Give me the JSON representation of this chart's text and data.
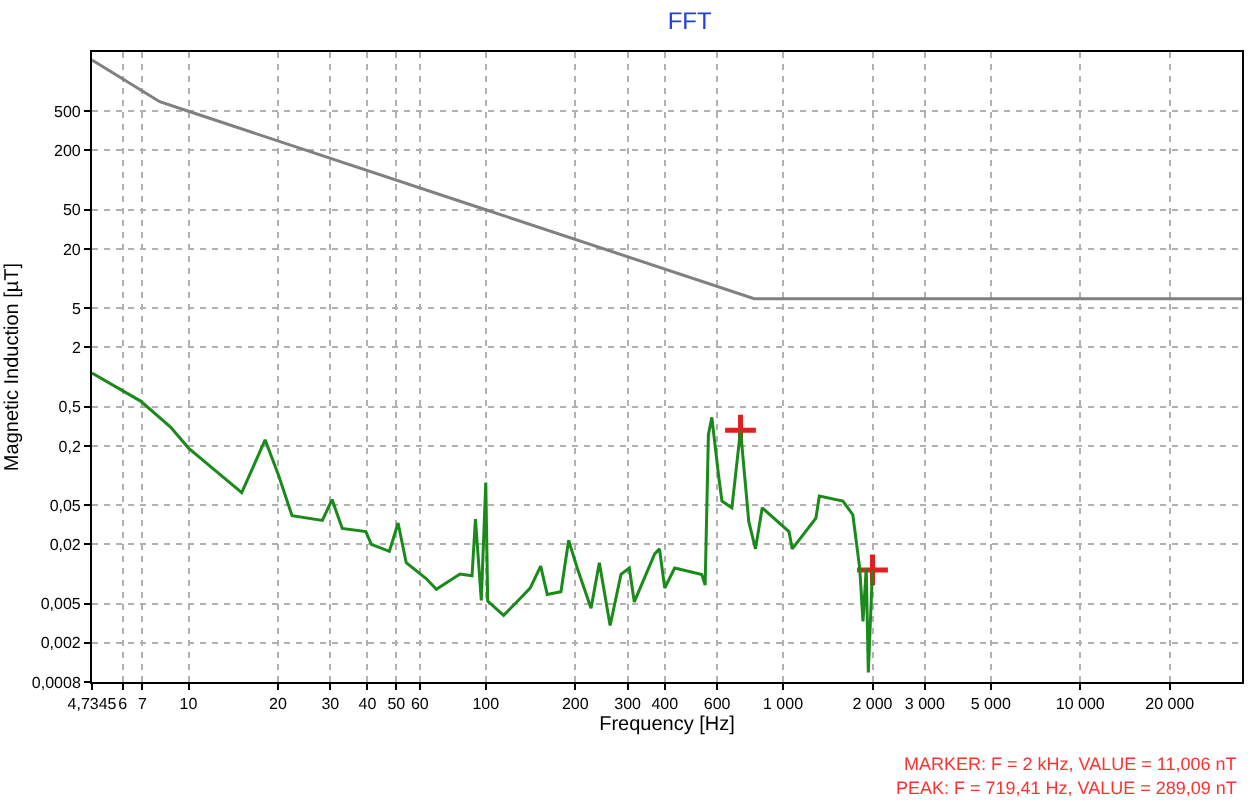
{
  "chart_data": {
    "type": "line",
    "title": "FFT",
    "xlabel": "Frequency [Hz]",
    "ylabel": "Magnetic Induction [µT]",
    "log": "xy",
    "grid": true,
    "xlim": [
      4.7345,
      35000
    ],
    "xticks": [
      {
        "value": 4.7345,
        "label": "4,7345"
      },
      6,
      7,
      10,
      20,
      30,
      40,
      50,
      60,
      100,
      200,
      300,
      400,
      600,
      {
        "value": 1000,
        "label": "1 000"
      },
      {
        "value": 2000,
        "label": "2 000"
      },
      {
        "value": 3000,
        "label": "3 000"
      },
      {
        "value": 5000,
        "label": "5 000"
      },
      {
        "value": 10000,
        "label": "10 000"
      },
      {
        "value": 20000,
        "label": "20 000"
      }
    ],
    "ylim": [
      0.0008,
      2000
    ],
    "yticks": [
      {
        "value": 0.0008,
        "label": "0,0008"
      },
      {
        "value": 0.002,
        "label": "0,002"
      },
      {
        "value": 0.005,
        "label": "0,005"
      },
      {
        "value": 0.02,
        "label": "0,02"
      },
      {
        "value": 0.05,
        "label": "0,05"
      },
      {
        "value": 0.2,
        "label": "0,2"
      },
      {
        "value": 0.5,
        "label": "0,5"
      },
      2,
      5,
      20,
      50,
      200,
      500
    ],
    "series": [
      {
        "color": "#808080",
        "marker": "none",
        "x": [
          4.7345,
          8,
          10,
          100,
          800,
          35000
        ],
        "values": [
          1660,
          625,
          500,
          50,
          6.25,
          6.25
        ]
      },
      {
        "color": "#1a8a1a",
        "marker": "none",
        "x": [
          4.7345,
          6.9,
          8.7,
          10,
          15.1,
          18.1,
          20.1,
          22.3,
          28.2,
          30.4,
          32.9,
          39.5,
          41.2,
          47.4,
          50.7,
          54,
          63,
          68.2,
          81.9,
          89.9,
          92.3,
          96.6,
          100,
          101.5,
          114.8,
          131,
          141,
          153,
          161,
          179,
          190,
          203,
          226,
          241,
          262,
          285,
          304,
          316,
          370,
          384,
          400,
          432,
          533,
          547,
          561,
          576,
          607,
          623,
          673,
          719.41,
          767,
          808,
          851,
          1047,
          1074,
          1290,
          1325,
          1590,
          1717,
          1811,
          1858,
          1905,
          1936,
          2000
        ],
        "values": [
          1.1,
          0.57,
          0.31,
          0.19,
          0.067,
          0.23,
          0.1,
          0.039,
          0.035,
          0.057,
          0.029,
          0.027,
          0.02,
          0.017,
          0.033,
          0.013,
          0.009,
          0.007,
          0.01,
          0.0096,
          0.036,
          0.0054,
          0.085,
          0.0053,
          0.0038,
          0.0057,
          0.0072,
          0.012,
          0.0062,
          0.0066,
          0.022,
          0.0115,
          0.0045,
          0.013,
          0.003,
          0.0099,
          0.0115,
          0.0052,
          0.016,
          0.018,
          0.0072,
          0.0115,
          0.0099,
          0.0077,
          0.26,
          0.39,
          0.1,
          0.055,
          0.047,
          0.289,
          0.034,
          0.018,
          0.047,
          0.027,
          0.018,
          0.037,
          0.062,
          0.055,
          0.04,
          0.0115,
          0.0033,
          0.0115,
          0.001,
          0.011
        ]
      },
      {
        "type": "scatter",
        "color": "#e02020",
        "marker": "cross",
        "x": [
          719.41,
          2000
        ],
        "values": [
          0.289,
          0.011
        ]
      }
    ],
    "annotations": [
      "MARKER: F = 2 kHz, VALUE = 11,006 nT",
      "PEAK: F = 719,41 Hz, VALUE = 289,09 nT"
    ]
  }
}
